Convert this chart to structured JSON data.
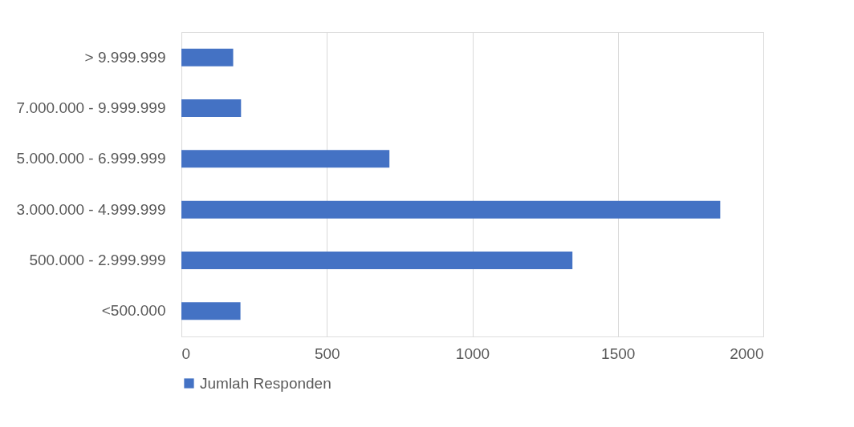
{
  "chart_data": {
    "type": "bar",
    "orientation": "horizontal",
    "categories": [
      "> 9.999.999",
      "7.000.000 - 9.999.999",
      "5.000.000 - 6.999.999",
      "3.000.000 - 4.999.999",
      "500.000 - 2.999.999",
      "<500.000"
    ],
    "series": [
      {
        "name": "Jumlah Responden",
        "color": "#4472c4",
        "values": [
          178,
          205,
          715,
          1852,
          1344,
          203
        ]
      }
    ],
    "xlim": [
      0,
      2000
    ],
    "xticks": [
      0,
      500,
      1000,
      1500,
      2000
    ],
    "grid": "x",
    "legend": "bottom"
  }
}
